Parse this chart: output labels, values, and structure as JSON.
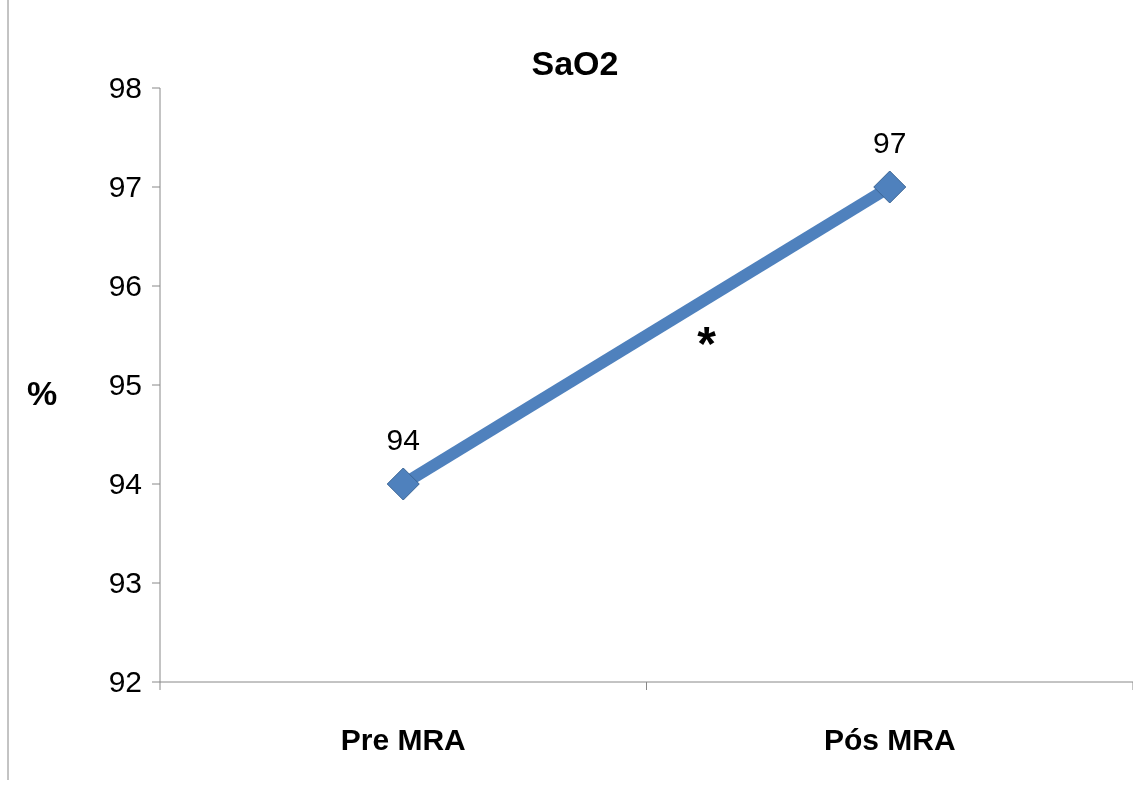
{
  "chart_data": {
    "type": "line",
    "title": "SaO2",
    "ylabel": "%",
    "categories": [
      "Pre MRA",
      "Pós MRA"
    ],
    "series": [
      {
        "color": "#4f81bd",
        "values": [
          94,
          97
        ]
      }
    ],
    "ylim": [
      92,
      98
    ],
    "yticks": [
      92,
      93,
      94,
      95,
      96,
      97,
      98
    ],
    "grid": false,
    "marker": "diamond",
    "line_style": "solid",
    "data_labels": true,
    "annotations": [
      "*"
    ]
  }
}
